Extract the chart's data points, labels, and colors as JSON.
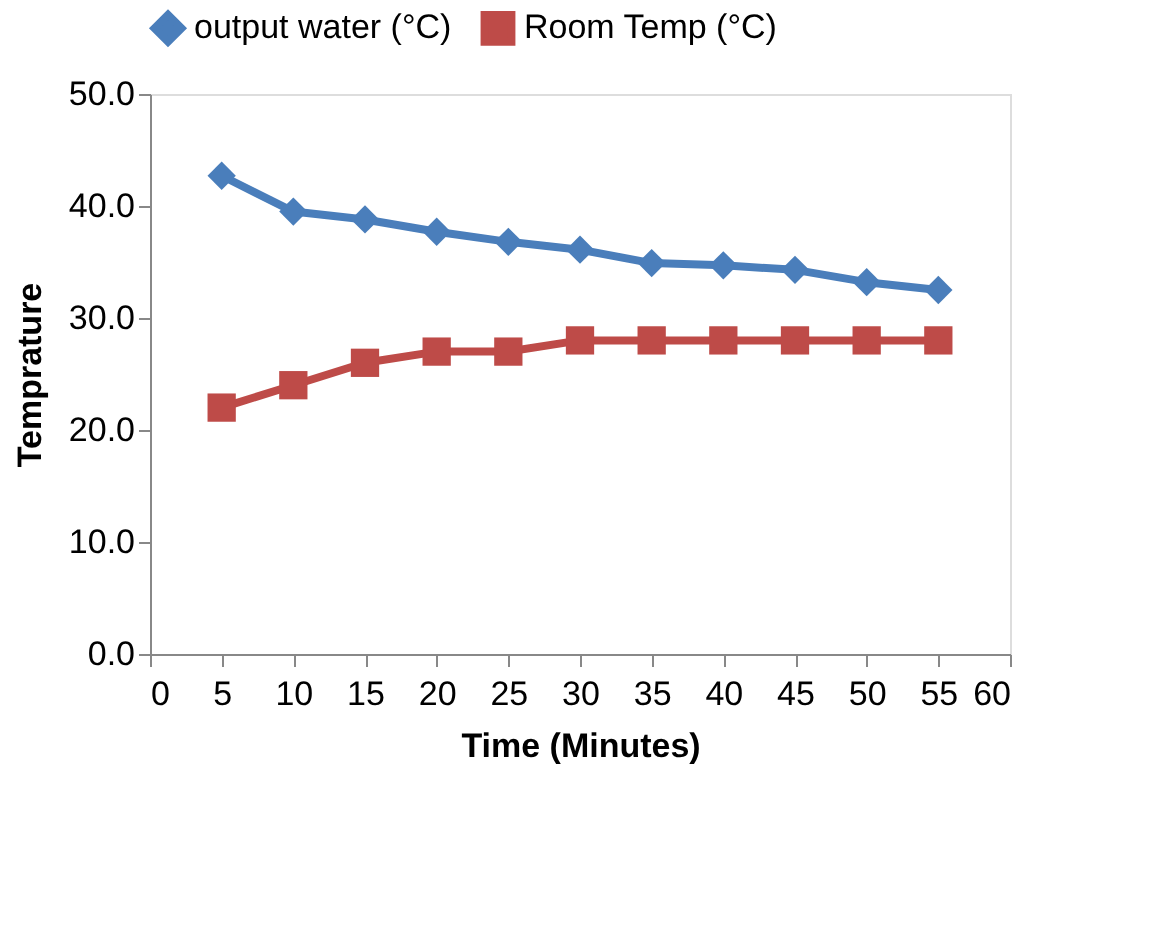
{
  "chart_data": {
    "type": "line",
    "xlabel": "Time (Minutes)",
    "ylabel": "Temprature",
    "x": [
      5,
      10,
      15,
      20,
      25,
      30,
      35,
      40,
      45,
      50,
      55
    ],
    "series": [
      {
        "name": "output water (°C)",
        "color": "#4a7ebb",
        "marker": "diamond",
        "values": [
          42.7,
          39.5,
          38.8,
          37.7,
          36.8,
          36.1,
          34.9,
          34.7,
          34.3,
          33.2,
          32.5
        ]
      },
      {
        "name": "Room Temp (°C)",
        "color": "#be4b48",
        "marker": "square",
        "values": [
          22,
          24,
          26,
          27,
          27,
          28,
          28,
          28,
          28,
          28,
          28
        ]
      }
    ],
    "xlim": [
      0,
      60
    ],
    "xticks": [
      0,
      5,
      10,
      15,
      20,
      25,
      30,
      35,
      40,
      45,
      50,
      55,
      60
    ],
    "ylim": [
      0,
      50
    ],
    "yticks": [
      {
        "value": 0,
        "label": "0.0"
      },
      {
        "value": 10,
        "label": "10.0"
      },
      {
        "value": 20,
        "label": "20.0"
      },
      {
        "value": 30,
        "label": "30.0"
      },
      {
        "value": 40,
        "label": "40.0"
      },
      {
        "value": 50,
        "label": "50.0"
      }
    ],
    "grid": false,
    "legend": "top",
    "line_style": "solid"
  }
}
